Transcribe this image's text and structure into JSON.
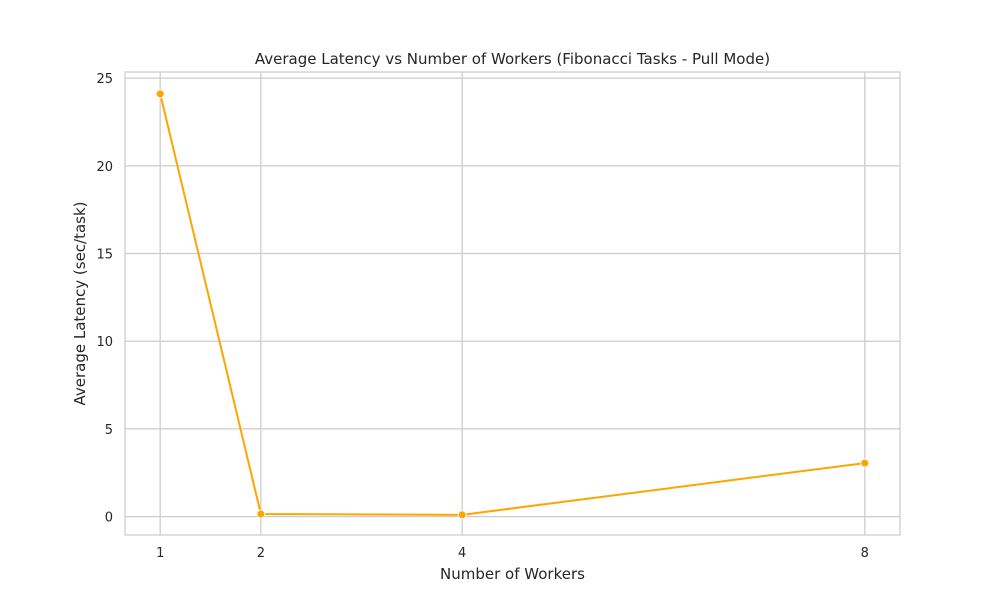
{
  "chart_data": {
    "type": "line",
    "title": "Average Latency vs Number of Workers (Fibonacci Tasks - Pull Mode)",
    "xlabel": "Number of Workers",
    "ylabel": "Average Latency (sec/task)",
    "x": [
      1,
      2,
      4,
      8
    ],
    "xticks": [
      "1",
      "2",
      "4",
      "8"
    ],
    "yticks": [
      0,
      5,
      10,
      15,
      20,
      25
    ],
    "xlim": [
      0.65,
      8.35
    ],
    "ylim": [
      -1.05,
      25.35
    ],
    "grid": true,
    "legend": "none",
    "series": [
      {
        "values": [
          24.1,
          0.15,
          0.1,
          3.05
        ],
        "color": "#FFA500"
      }
    ],
    "colors": {
      "line": "#FFA500",
      "grid": "#cccccc",
      "frame": "#cccccc"
    }
  }
}
